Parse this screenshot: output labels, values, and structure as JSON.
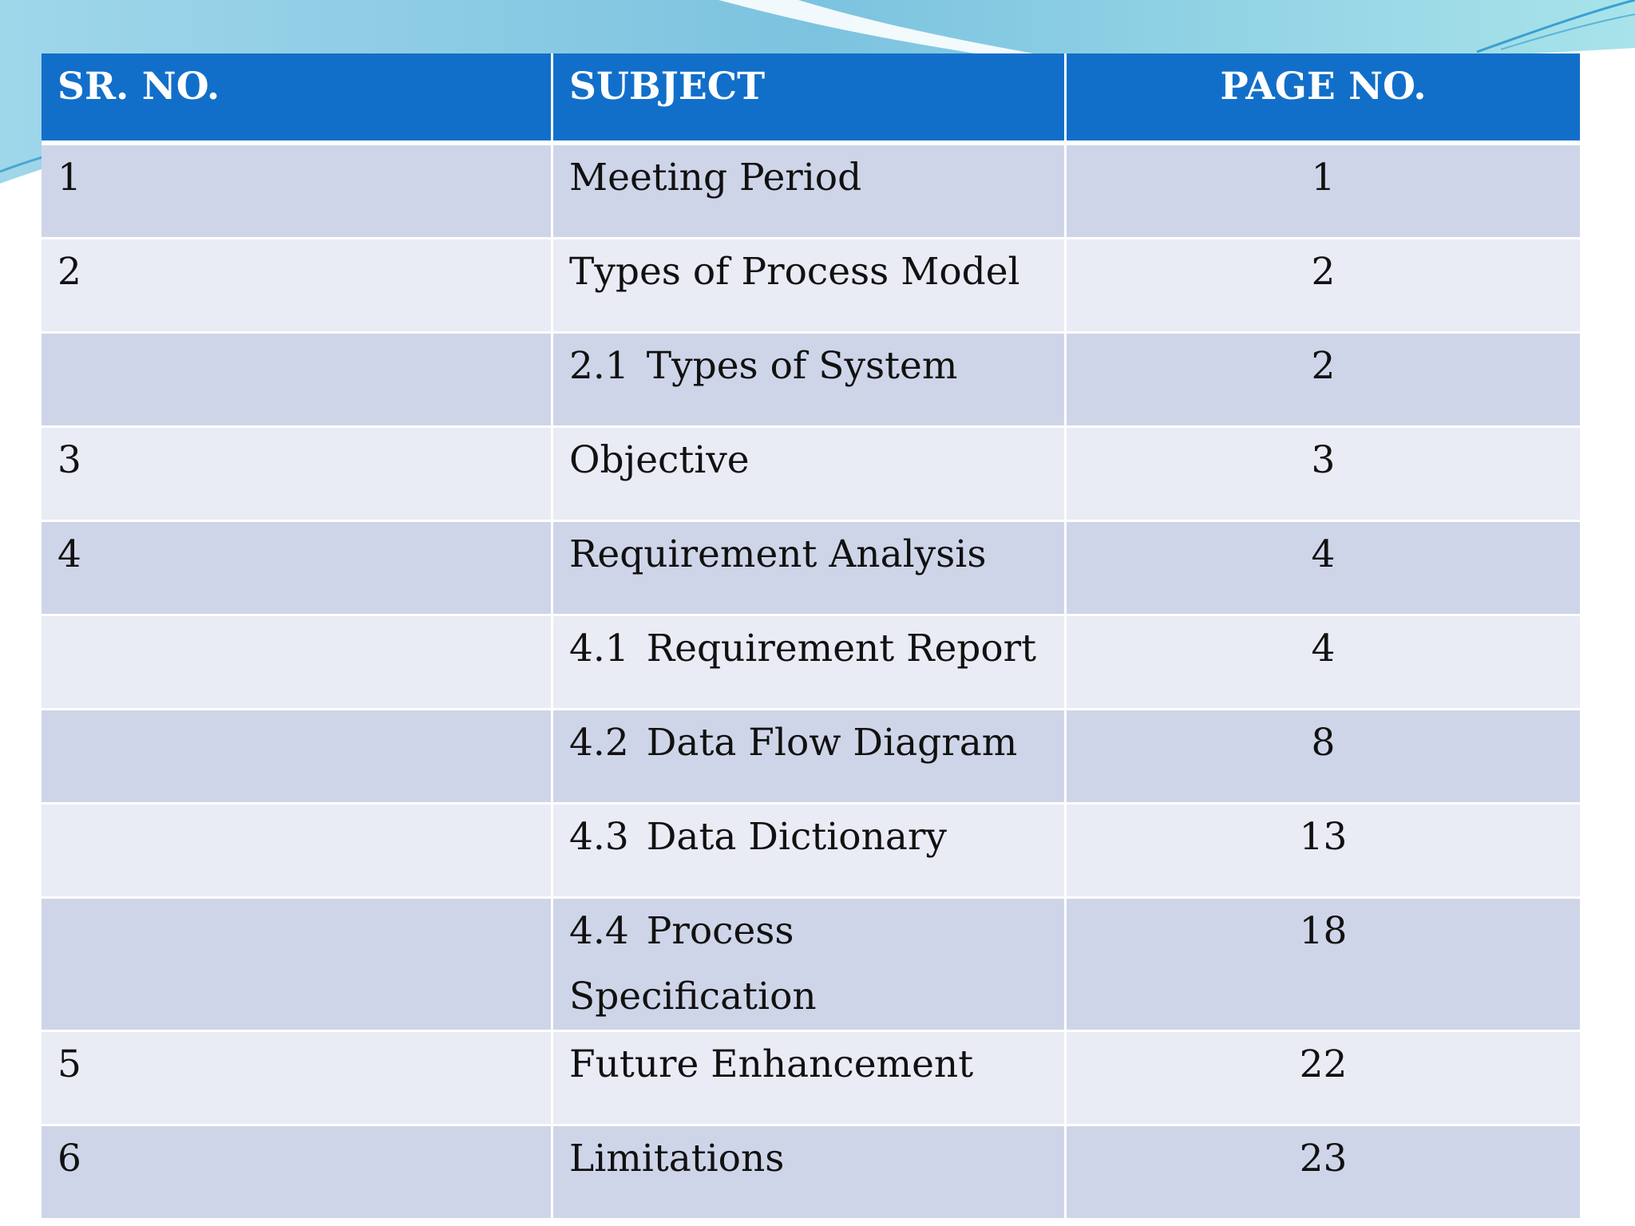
{
  "table": {
    "headers": {
      "sr_no": "SR. NO.",
      "subject": "SUBJECT",
      "page_no": "PAGE NO."
    },
    "rows": [
      {
        "sr": "1",
        "num": "",
        "subject": "Meeting Period",
        "page": "1"
      },
      {
        "sr": "2",
        "num": "",
        "subject": "Types of Process Model",
        "page": "2"
      },
      {
        "sr": "",
        "num": "2.1",
        "subject": "Types of System",
        "page": "2"
      },
      {
        "sr": "3",
        "num": "",
        "subject": "Objective",
        "page": "3"
      },
      {
        "sr": "4",
        "num": "",
        "subject": "Requirement Analysis",
        "page": "4"
      },
      {
        "sr": "",
        "num": "4.1",
        "subject": "Requirement Report",
        "page": "4"
      },
      {
        "sr": "",
        "num": "4.2",
        "subject": "Data Flow Diagram",
        "page": "8"
      },
      {
        "sr": "",
        "num": "4.3",
        "subject": "Data Dictionary",
        "page": "13"
      },
      {
        "sr": "",
        "num": "4.4",
        "subject": "Process Specification",
        "page": "18"
      },
      {
        "sr": "5",
        "num": "",
        "subject": "Future Enhancement",
        "page": "22"
      },
      {
        "sr": "6",
        "num": "",
        "subject": "Limitations",
        "page": "23"
      }
    ]
  },
  "colors": {
    "header_bg": "#126fc9",
    "row_dark": "#cfd5e8",
    "row_light": "#e9ebf5",
    "accent_teal": "#7fd3e0"
  }
}
